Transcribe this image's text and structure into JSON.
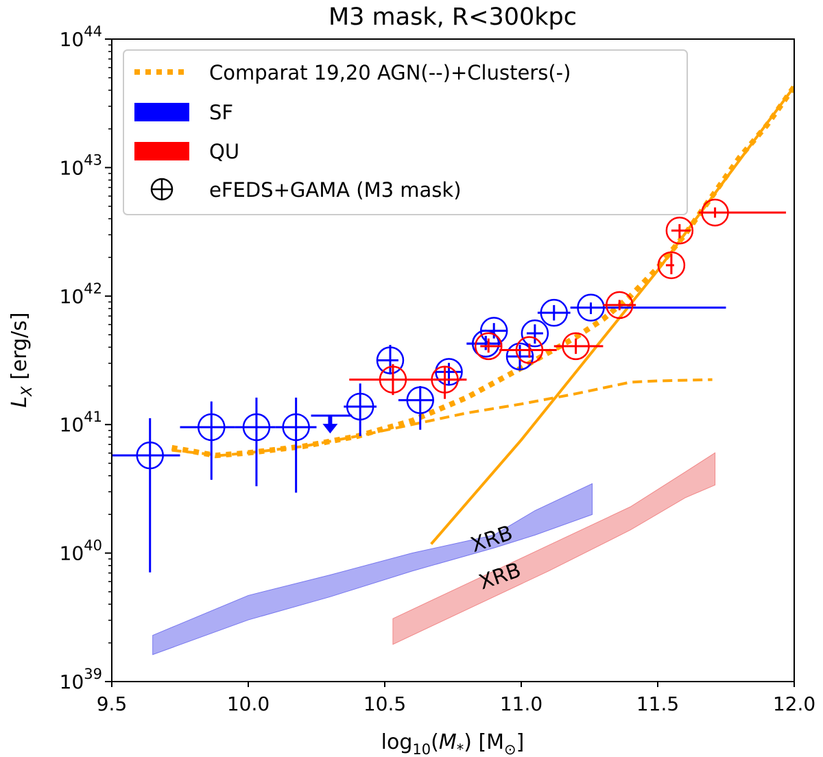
{
  "chart_data": {
    "type": "scatter",
    "title": "M3 mask, R<300kpc",
    "xlabel_parts": [
      "log",
      "10",
      "(",
      "M",
      "*",
      ") [M",
      "⊙",
      "]"
    ],
    "ylabel_parts": [
      "L",
      "X",
      " [erg/s]"
    ],
    "x_scale": "linear",
    "y_scale": "log",
    "xlim": [
      9.5,
      12.0
    ],
    "ylim_log10": [
      39,
      44
    ],
    "x_ticks": [
      "9.5",
      "10.0",
      "10.5",
      "11.0",
      "11.5",
      "12.0"
    ],
    "y_ticks": [
      {
        "log": 39,
        "base": "10",
        "exp": "39"
      },
      {
        "log": 40,
        "base": "10",
        "exp": "40"
      },
      {
        "log": 41,
        "base": "10",
        "exp": "41"
      },
      {
        "log": 42,
        "base": "10",
        "exp": "42"
      },
      {
        "log": 43,
        "base": "10",
        "exp": "43"
      },
      {
        "log": 44,
        "base": "10",
        "exp": "44"
      }
    ],
    "grid": false,
    "legend": {
      "position": "upper-left",
      "entries": [
        {
          "label": "Comparat 19,20 AGN(--)+Clusters(-)",
          "kind": "dotted-line",
          "color": "#FFA500"
        },
        {
          "label": "SF",
          "kind": "patch",
          "color": "#0000FF"
        },
        {
          "label": "QU",
          "kind": "patch",
          "color": "#FF0000"
        },
        {
          "label": "eFEDS+GAMA (M3 mask)",
          "kind": "marker",
          "color": "#000000"
        }
      ]
    },
    "colors": {
      "sf": "#0000FF",
      "qu": "#FF0000",
      "model": "#FFA500",
      "sf_band": "#7777EE",
      "qu_band": "#F08888"
    },
    "model_total": {
      "x": [
        9.72,
        9.88,
        10.0,
        10.2,
        10.4,
        10.6,
        10.8,
        11.0,
        11.2,
        11.3,
        11.4,
        11.5,
        11.6,
        11.7,
        11.8,
        11.9,
        12.0
      ],
      "logy": [
        40.82,
        40.76,
        40.78,
        40.83,
        40.91,
        41.03,
        41.21,
        41.44,
        41.68,
        41.82,
        42.0,
        42.22,
        42.48,
        42.78,
        43.08,
        43.33,
        43.63
      ]
    },
    "model_agn": {
      "x": [
        9.72,
        9.9,
        10.0,
        10.2,
        10.4,
        10.6,
        10.8,
        11.0,
        11.2,
        11.4,
        11.5,
        11.7
      ],
      "logy": [
        40.8,
        40.76,
        40.78,
        40.83,
        40.91,
        41.0,
        41.09,
        41.16,
        41.24,
        41.33,
        41.34,
        41.35
      ]
    },
    "model_clusters": {
      "x": [
        10.67,
        11.0,
        11.5,
        12.0
      ],
      "logy": [
        40.07,
        40.88,
        42.2,
        43.63
      ]
    },
    "xrb_sf": {
      "x": [
        9.65,
        10.0,
        10.3,
        10.6,
        10.9,
        11.05,
        11.26
      ],
      "logy_low": [
        39.21,
        39.48,
        39.66,
        39.86,
        40.04,
        40.14,
        40.3
      ],
      "logy_high": [
        39.36,
        39.67,
        39.83,
        40.0,
        40.14,
        40.33,
        40.54
      ]
    },
    "xrb_qu": {
      "x": [
        10.53,
        10.8,
        11.1,
        11.4,
        11.6,
        11.71
      ],
      "logy_low": [
        39.29,
        39.56,
        39.86,
        40.18,
        40.43,
        40.53
      ],
      "logy_high": [
        39.49,
        39.76,
        40.06,
        40.36,
        40.63,
        40.78
      ]
    },
    "band_labels": [
      {
        "text": "XRB",
        "x": 10.9,
        "logy": 40.06,
        "angle": -19,
        "color": "#0000FF"
      },
      {
        "text": "XRB",
        "x": 10.93,
        "logy": 39.77,
        "angle": -19,
        "color": "#FF0000"
      }
    ],
    "sf_points": [
      {
        "x": 9.64,
        "logy": 40.76,
        "xerr": [
          9.5,
          9.75
        ],
        "yerr": [
          39.85,
          41.05
        ]
      },
      {
        "x": 9.865,
        "logy": 40.98,
        "xerr": [
          9.75,
          9.95
        ],
        "yerr": [
          40.57,
          41.18
        ]
      },
      {
        "x": 10.03,
        "logy": 40.98,
        "xerr": [
          9.95,
          10.1
        ],
        "yerr": [
          40.52,
          41.21
        ]
      },
      {
        "x": 10.175,
        "logy": 40.98,
        "xerr": [
          10.1,
          10.25
        ],
        "yerr": [
          40.47,
          41.21
        ]
      },
      {
        "x": 10.41,
        "logy": 41.14,
        "xerr": [
          10.35,
          10.47
        ],
        "yerr": [
          40.91,
          41.32
        ]
      },
      {
        "x": 10.52,
        "logy": 41.5,
        "xerr": [
          10.47,
          10.55
        ],
        "yerr": [
          41.39,
          41.62
        ]
      },
      {
        "x": 10.63,
        "logy": 41.19,
        "xerr": [
          10.55,
          10.68
        ],
        "yerr": [
          40.96,
          41.3
        ]
      },
      {
        "x": 10.735,
        "logy": 41.41,
        "xerr": [
          10.68,
          10.78
        ],
        "yerr": [
          41.31,
          41.48
        ]
      },
      {
        "x": 10.87,
        "logy": 41.63,
        "xerr": [
          10.8,
          10.93
        ],
        "yerr": [
          41.58,
          41.69
        ]
      },
      {
        "x": 10.9,
        "logy": 41.73,
        "xerr": [
          10.85,
          10.95
        ],
        "yerr": [
          41.67,
          41.79
        ]
      },
      {
        "x": 10.995,
        "logy": 41.53,
        "xerr": [
          10.95,
          11.04
        ],
        "yerr": [
          41.42,
          41.62
        ]
      },
      {
        "x": 11.05,
        "logy": 41.71,
        "xerr": [
          11.02,
          11.08
        ],
        "yerr": [
          41.63,
          41.78
        ]
      },
      {
        "x": 11.12,
        "logy": 41.87,
        "xerr": [
          11.06,
          11.18
        ],
        "yerr": [
          41.81,
          41.93
        ]
      },
      {
        "x": 11.255,
        "logy": 41.91,
        "xerr": [
          11.18,
          11.75
        ],
        "yerr": [
          41.86,
          41.95
        ]
      },
      {
        "x": 10.87,
        "logy": 41.63,
        "xerr": [
          10.8,
          10.93
        ],
        "yerr": [
          41.58,
          41.69
        ]
      }
    ],
    "sf_upper_limit": {
      "x": 10.3,
      "logy": 41.07,
      "xerr": [
        10.23,
        10.38
      ]
    },
    "qu_points": [
      {
        "x": 10.53,
        "logy": 41.35,
        "xerr": [
          10.37,
          10.8
        ],
        "yerr": [
          41.23,
          41.47
        ]
      },
      {
        "x": 10.72,
        "logy": 41.35,
        "xerr": [
          10.68,
          10.78
        ],
        "yerr": [
          41.2,
          41.45
        ]
      },
      {
        "x": 10.88,
        "logy": 41.61,
        "xerr": [
          10.85,
          10.93
        ],
        "yerr": [
          41.56,
          41.67
        ]
      },
      {
        "x": 11.03,
        "logy": 41.58,
        "xerr": [
          10.92,
          11.13
        ],
        "yerr": [
          41.52,
          41.63
        ]
      },
      {
        "x": 11.2,
        "logy": 41.61,
        "xerr": [
          11.12,
          11.3
        ],
        "yerr": [
          41.55,
          41.67
        ]
      },
      {
        "x": 11.36,
        "logy": 41.93,
        "xerr": [
          11.3,
          11.42
        ],
        "yerr": [
          41.89,
          41.97
        ]
      },
      {
        "x": 11.55,
        "logy": 42.24,
        "xerr": [
          11.53,
          11.56
        ],
        "yerr": [
          42.17,
          42.33
        ]
      },
      {
        "x": 11.58,
        "logy": 42.51,
        "xerr": [
          11.55,
          11.62
        ],
        "yerr": [
          42.45,
          42.56
        ]
      },
      {
        "x": 11.71,
        "logy": 42.65,
        "xerr": [
          11.65,
          11.97
        ],
        "yerr": [
          42.61,
          42.69
        ]
      }
    ]
  }
}
